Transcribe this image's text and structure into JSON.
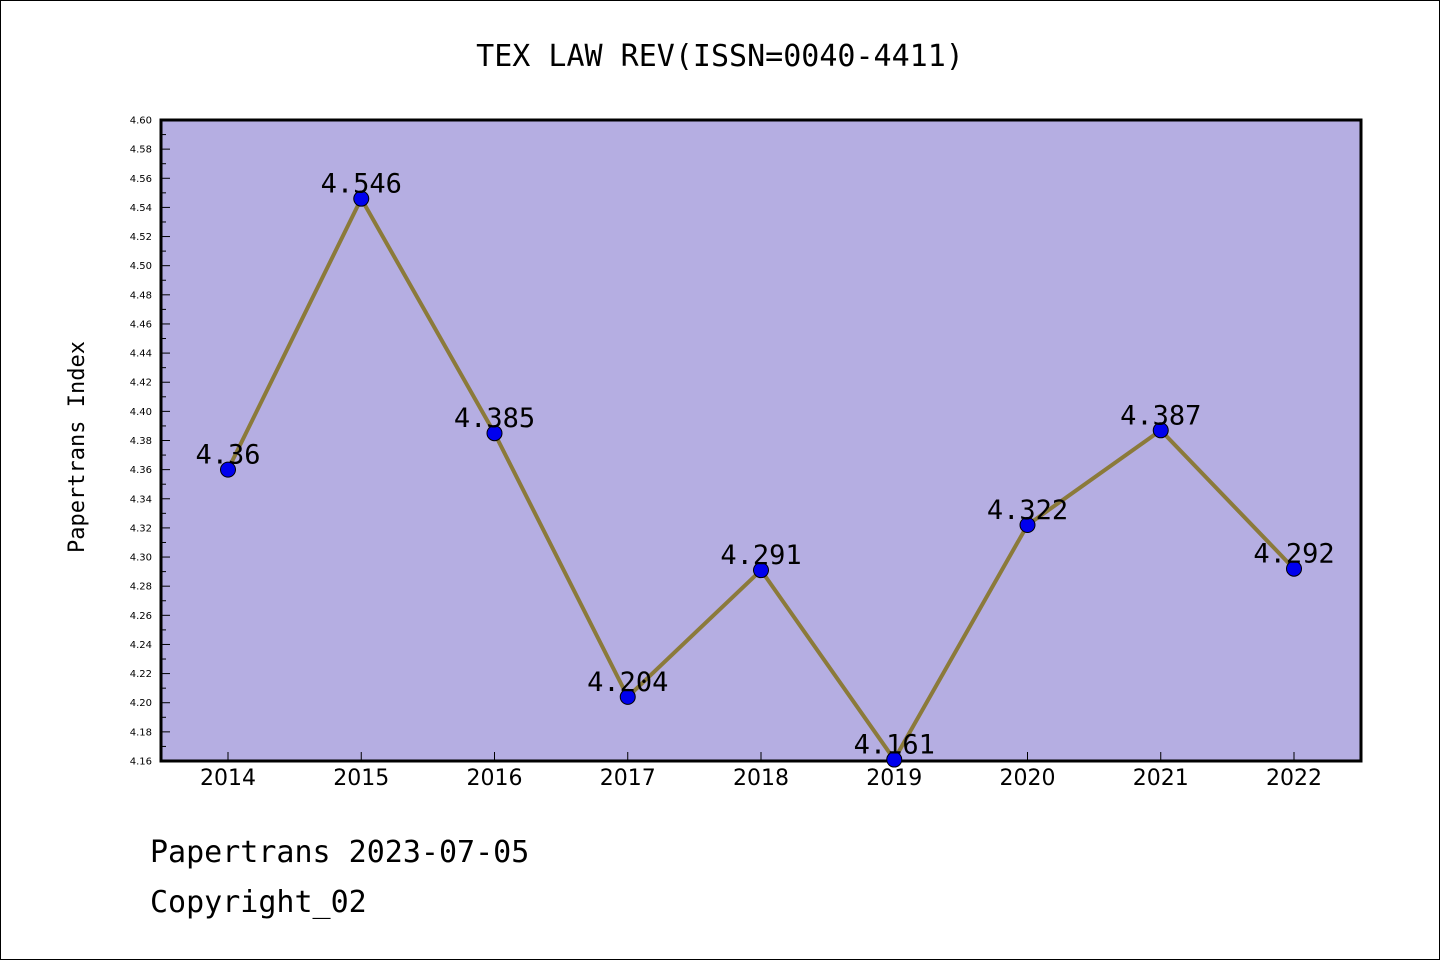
{
  "chart_data": {
    "type": "line",
    "title": "TEX LAW REV(ISSN=0040-4411)",
    "xlabel": "",
    "ylabel": "Papertrans Index",
    "categories": [
      "2014",
      "2015",
      "2016",
      "2017",
      "2018",
      "2019",
      "2020",
      "2021",
      "2022"
    ],
    "series": [
      {
        "values": [
          4.36,
          4.546,
          4.385,
          4.204,
          4.291,
          4.161,
          4.322,
          4.387,
          4.292
        ],
        "labels": [
          "4.36",
          "4.546",
          "4.385",
          "4.204",
          "4.291",
          "4.161",
          "4.322",
          "4.387",
          "4.292"
        ]
      }
    ],
    "ylim": [
      4.16,
      4.6
    ],
    "yticks": [
      "4.16",
      "4.18",
      "4.20",
      "4.22",
      "4.24",
      "4.26",
      "4.28",
      "4.30",
      "4.32",
      "4.34",
      "4.36",
      "4.38",
      "4.40",
      "4.42",
      "4.44",
      "4.46",
      "4.48",
      "4.50",
      "4.52",
      "4.54",
      "4.56",
      "4.58",
      "4.60"
    ],
    "grid": false,
    "colors": {
      "plot_background": "#b5aee2",
      "line": "#8b7a3a",
      "marker": "#0000ee"
    }
  },
  "footer": {
    "line1": "Papertrans 2023-07-05",
    "line2": "Copyright_02"
  }
}
